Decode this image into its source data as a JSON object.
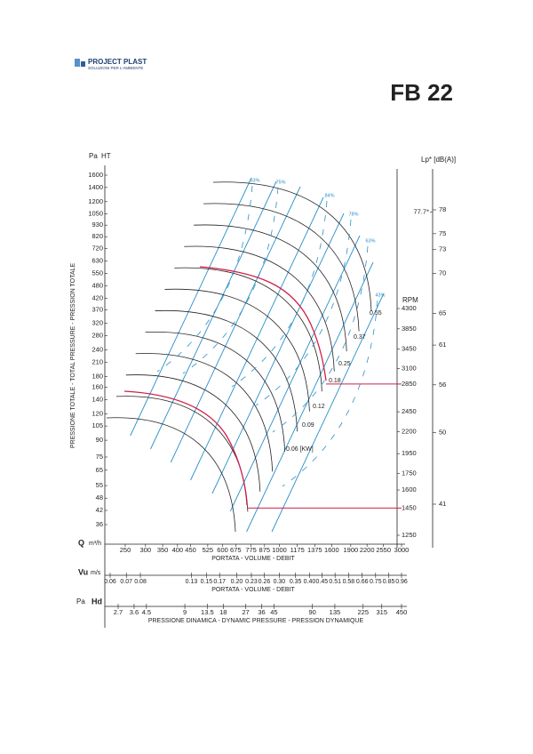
{
  "header": {
    "logo": "PROJECT PLAST",
    "logo_subtitle": "SOLUZIONI PER L'AMBIENTE",
    "title": "FB 22"
  },
  "chart_data": {
    "type": "fan-curve",
    "log_scales": true,
    "total_pressure": {
      "unit": "Pa",
      "label": "HT",
      "title": "PRESSIONE TOTALE - TOTAL PRESSURE - PRESSION TOTALE",
      "range": [
        36,
        1600
      ],
      "ticks": [
        1600,
        1400,
        1200,
        1050,
        930,
        820,
        720,
        630,
        550,
        480,
        420,
        370,
        320,
        280,
        240,
        210,
        180,
        160,
        140,
        120,
        105,
        90,
        75,
        65,
        55,
        48,
        42,
        36
      ]
    },
    "flow": {
      "label": "Q",
      "unit": "m³/h",
      "title": "PORTATA - VOLUME - DEBIT",
      "range": [
        250,
        3000
      ],
      "ticks": [
        250,
        300,
        350,
        400,
        450,
        525,
        600,
        675,
        775,
        875,
        1000,
        1175,
        1375,
        1600,
        1900,
        2200,
        2550,
        3000
      ]
    },
    "velocity": {
      "label": "Vu",
      "unit": "m/s",
      "title": "PORTATA - VOLUME - DEBIT",
      "range": [
        0.06,
        0.96
      ],
      "ticks": [
        0.06,
        0.07,
        0.08,
        0.13,
        0.15,
        0.17,
        {
          "value": 0.2,
          "label": "0.20"
        },
        0.23,
        0.26,
        {
          "value": 0.3,
          "label": "0.30"
        },
        0.35,
        {
          "value": 0.4,
          "label": "0.40"
        },
        0.45,
        0.51,
        0.58,
        0.66,
        0.75,
        0.85,
        0.96
      ]
    },
    "dynamic_pressure": {
      "unit": "Pa",
      "label": "Hd",
      "title": "PRESSIONE DINAMICA - DYNAMIC PRESSURE - PRESSION DYNAMIQUE",
      "range": [
        2.7,
        450
      ],
      "ticks": [
        2.7,
        3.6,
        4.5,
        9,
        13.5,
        18,
        27,
        36,
        45,
        90,
        135,
        225,
        315,
        450
      ]
    },
    "speed": {
      "label": "RPM",
      "range": [
        1250,
        4300
      ],
      "ticks": [
        4300,
        3850,
        3450,
        3100,
        2850,
        2450,
        2200,
        1950,
        1750,
        1600,
        1450,
        1250
      ],
      "highlighted": [
        2850,
        1450
      ]
    },
    "sound": {
      "label": "Lp* [dB(A)]",
      "range": [
        41,
        78
      ],
      "ticks": [
        78,
        75,
        73,
        70,
        65,
        61,
        56,
        50,
        41
      ],
      "annotation": {
        "value": 77.7,
        "label": "77.7*"
      }
    },
    "power": [
      {
        "value": 0.06,
        "label": "0.06 [KW]"
      },
      0.09,
      0.12,
      0.18,
      0.25,
      0.37,
      0.55
    ],
    "efficiency": [
      "63%",
      "75%",
      "84%",
      "78%",
      "63%",
      "43%"
    ]
  }
}
